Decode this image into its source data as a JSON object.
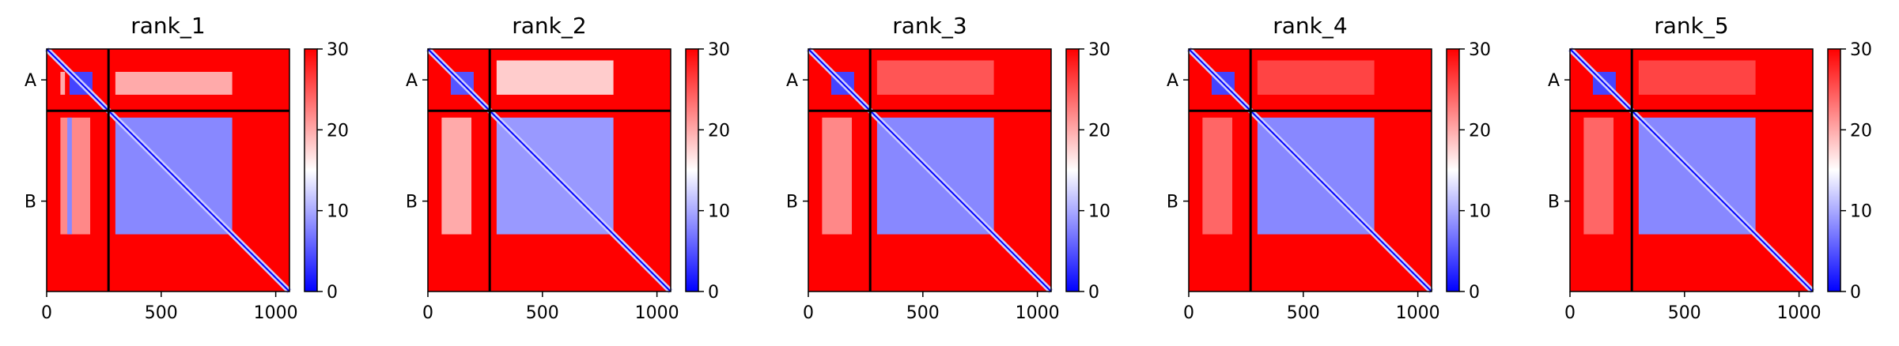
{
  "figure": {
    "domain_labels": [
      "A",
      "B"
    ],
    "x_ticks": [
      0,
      500,
      1000
    ],
    "colorbar_ticks": [
      0,
      10,
      20,
      30
    ],
    "colormap": [
      "#0000ff",
      "#ffffff",
      "#ff0000"
    ]
  },
  "chart_data": [
    {
      "type": "heatmap",
      "title": "rank_1",
      "xlim": [
        0,
        1060
      ],
      "chain_boundary": 270,
      "chains": [
        {
          "name": "A",
          "start": 0,
          "end": 270
        },
        {
          "name": "B",
          "start": 270,
          "end": 1060
        }
      ],
      "colorbar": {
        "min": 0,
        "max": 30,
        "ticks": [
          0,
          10,
          20,
          30
        ]
      },
      "regions": [
        {
          "rows": [
            0,
            1060
          ],
          "cols": [
            0,
            1060
          ],
          "value": 30
        },
        {
          "rows": [
            100,
            200
          ],
          "cols": [
            100,
            200
          ],
          "value": 4
        },
        {
          "rows": [
            100,
            200
          ],
          "cols": [
            300,
            810
          ],
          "value": 20
        },
        {
          "rows": [
            100,
            200
          ],
          "cols": [
            60,
            80
          ],
          "value": 20
        },
        {
          "rows": [
            300,
            810
          ],
          "cols": [
            300,
            810
          ],
          "value": 8
        },
        {
          "rows": [
            300,
            810
          ],
          "cols": [
            60,
            190
          ],
          "value": 22
        },
        {
          "rows": [
            300,
            810
          ],
          "cols": [
            90,
            110
          ],
          "value": 8
        }
      ]
    },
    {
      "type": "heatmap",
      "title": "rank_2",
      "xlim": [
        0,
        1060
      ],
      "chain_boundary": 270,
      "chains": [
        {
          "name": "A",
          "start": 0,
          "end": 270
        },
        {
          "name": "B",
          "start": 270,
          "end": 1060
        }
      ],
      "colorbar": {
        "min": 0,
        "max": 30,
        "ticks": [
          0,
          10,
          20,
          30
        ]
      },
      "regions": [
        {
          "rows": [
            0,
            1060
          ],
          "cols": [
            0,
            1060
          ],
          "value": 30
        },
        {
          "rows": [
            100,
            200
          ],
          "cols": [
            100,
            200
          ],
          "value": 5
        },
        {
          "rows": [
            50,
            200
          ],
          "cols": [
            300,
            810
          ],
          "value": 18
        },
        {
          "rows": [
            300,
            810
          ],
          "cols": [
            300,
            810
          ],
          "value": 9
        },
        {
          "rows": [
            300,
            810
          ],
          "cols": [
            60,
            190
          ],
          "value": 20
        }
      ]
    },
    {
      "type": "heatmap",
      "title": "rank_3",
      "xlim": [
        0,
        1060
      ],
      "chain_boundary": 270,
      "chains": [
        {
          "name": "A",
          "start": 0,
          "end": 270
        },
        {
          "name": "B",
          "start": 270,
          "end": 1060
        }
      ],
      "colorbar": {
        "min": 0,
        "max": 30,
        "ticks": [
          0,
          10,
          20,
          30
        ]
      },
      "regions": [
        {
          "rows": [
            0,
            1060
          ],
          "cols": [
            0,
            1060
          ],
          "value": 30
        },
        {
          "rows": [
            100,
            200
          ],
          "cols": [
            100,
            200
          ],
          "value": 4
        },
        {
          "rows": [
            50,
            200
          ],
          "cols": [
            300,
            810
          ],
          "value": 25
        },
        {
          "rows": [
            300,
            810
          ],
          "cols": [
            300,
            810
          ],
          "value": 8
        },
        {
          "rows": [
            300,
            810
          ],
          "cols": [
            60,
            190
          ],
          "value": 22
        }
      ]
    },
    {
      "type": "heatmap",
      "title": "rank_4",
      "xlim": [
        0,
        1060
      ],
      "chain_boundary": 270,
      "chains": [
        {
          "name": "A",
          "start": 0,
          "end": 270
        },
        {
          "name": "B",
          "start": 270,
          "end": 1060
        }
      ],
      "colorbar": {
        "min": 0,
        "max": 30,
        "ticks": [
          0,
          10,
          20,
          30
        ]
      },
      "regions": [
        {
          "rows": [
            0,
            1060
          ],
          "cols": [
            0,
            1060
          ],
          "value": 30
        },
        {
          "rows": [
            100,
            200
          ],
          "cols": [
            100,
            200
          ],
          "value": 4
        },
        {
          "rows": [
            50,
            200
          ],
          "cols": [
            300,
            810
          ],
          "value": 26
        },
        {
          "rows": [
            300,
            810
          ],
          "cols": [
            300,
            810
          ],
          "value": 8
        },
        {
          "rows": [
            300,
            810
          ],
          "cols": [
            60,
            190
          ],
          "value": 24
        }
      ]
    },
    {
      "type": "heatmap",
      "title": "rank_5",
      "xlim": [
        0,
        1060
      ],
      "chain_boundary": 270,
      "chains": [
        {
          "name": "A",
          "start": 0,
          "end": 270
        },
        {
          "name": "B",
          "start": 270,
          "end": 1060
        }
      ],
      "colorbar": {
        "min": 0,
        "max": 30,
        "ticks": [
          0,
          10,
          20,
          30
        ]
      },
      "regions": [
        {
          "rows": [
            0,
            1060
          ],
          "cols": [
            0,
            1060
          ],
          "value": 30
        },
        {
          "rows": [
            100,
            200
          ],
          "cols": [
            100,
            200
          ],
          "value": 4
        },
        {
          "rows": [
            50,
            200
          ],
          "cols": [
            300,
            810
          ],
          "value": 26
        },
        {
          "rows": [
            300,
            810
          ],
          "cols": [
            300,
            810
          ],
          "value": 8
        },
        {
          "rows": [
            300,
            810
          ],
          "cols": [
            60,
            190
          ],
          "value": 24
        }
      ]
    }
  ]
}
